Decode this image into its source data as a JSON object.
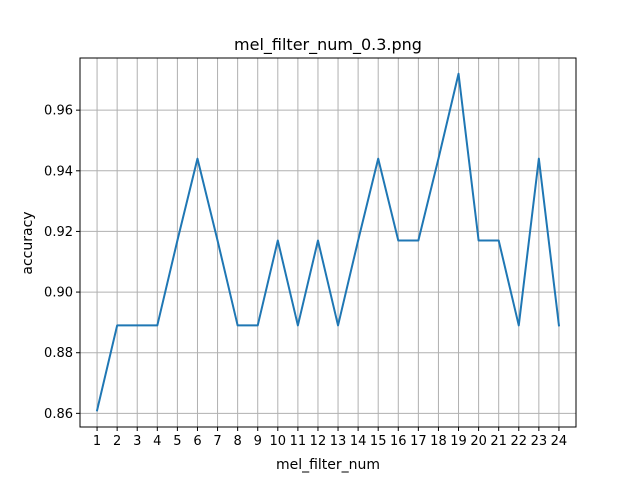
{
  "chart_data": {
    "type": "line",
    "title": "mel_filter_num_0.3.png",
    "xlabel": "mel_filter_num",
    "ylabel": "accuracy",
    "grid": true,
    "xlim": [
      0.15,
      24.85
    ],
    "ylim": [
      0.8555,
      0.9772
    ],
    "x_ticks": [
      1,
      2,
      3,
      4,
      5,
      6,
      7,
      8,
      9,
      10,
      11,
      12,
      13,
      14,
      15,
      16,
      17,
      18,
      19,
      20,
      21,
      22,
      23,
      24
    ],
    "y_ticks": [
      0.86,
      0.88,
      0.9,
      0.92,
      0.94,
      0.96
    ],
    "y_tick_labels": [
      "0.86",
      "0.88",
      "0.90",
      "0.92",
      "0.94",
      "0.96"
    ],
    "series": [
      {
        "color": "#1f77b4",
        "x": [
          1,
          2,
          3,
          4,
          5,
          6,
          7,
          8,
          9,
          10,
          11,
          12,
          13,
          14,
          15,
          16,
          17,
          18,
          19,
          20,
          21,
          22,
          23,
          24
        ],
        "values": [
          0.861,
          0.889,
          0.889,
          0.889,
          0.917,
          0.944,
          0.917,
          0.889,
          0.889,
          0.917,
          0.889,
          0.917,
          0.889,
          0.917,
          0.944,
          0.917,
          0.917,
          0.944,
          0.972,
          0.917,
          0.917,
          0.889,
          0.944,
          0.889
        ]
      }
    ]
  }
}
